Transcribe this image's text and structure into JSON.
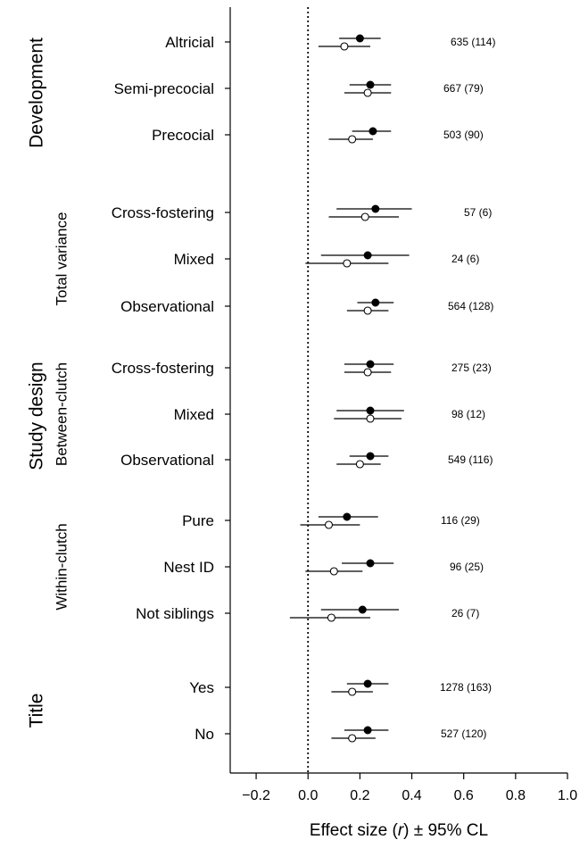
{
  "chart_data": {
    "type": "forest",
    "xlabel_prefix": "Effect size (",
    "xlabel_italic": "r",
    "xlabel_suffix": ") ± 95% CL",
    "xlim": [
      -0.3,
      1.0
    ],
    "xticks": [
      "−0.2",
      "0.0",
      "0.2",
      "0.4",
      "0.6",
      "0.8",
      "1.0"
    ],
    "xtick_values": [
      -0.2,
      0.0,
      0.2,
      0.4,
      0.6,
      0.8,
      1.0
    ],
    "reference_line": 0.0,
    "groups": [
      {
        "label": "Development"
      },
      {
        "label": "Study design"
      },
      {
        "label": "Title"
      }
    ],
    "subgroups": [
      {
        "label": "Total variance"
      },
      {
        "label": "Between-clutch"
      },
      {
        "label": "Within-clutch"
      }
    ],
    "series": [
      {
        "marker": "filled"
      },
      {
        "marker": "open"
      }
    ],
    "rows": [
      {
        "label": "Altricial",
        "n": "635 (114)",
        "filled": [
          0.2,
          0.12,
          0.28
        ],
        "open": [
          0.14,
          0.04,
          0.24
        ]
      },
      {
        "label": "Semi-precocial",
        "n": "667 (79)",
        "filled": [
          0.24,
          0.16,
          0.32
        ],
        "open": [
          0.23,
          0.14,
          0.32
        ]
      },
      {
        "label": "Precocial",
        "n": "503 (90)",
        "filled": [
          0.25,
          0.17,
          0.32
        ],
        "open": [
          0.17,
          0.08,
          0.25
        ]
      },
      {
        "label": "Cross-fostering",
        "n": "57 (6)",
        "filled": [
          0.26,
          0.11,
          0.4
        ],
        "open": [
          0.22,
          0.08,
          0.35
        ]
      },
      {
        "label": "Mixed",
        "n": "24 (6)",
        "filled": [
          0.23,
          0.05,
          0.39
        ],
        "open": [
          0.15,
          -0.01,
          0.31
        ]
      },
      {
        "label": "Observational",
        "n": "564 (128)",
        "filled": [
          0.26,
          0.19,
          0.33
        ],
        "open": [
          0.23,
          0.15,
          0.31
        ]
      },
      {
        "label": "Cross-fostering",
        "n": "275 (23)",
        "filled": [
          0.24,
          0.14,
          0.33
        ],
        "open": [
          0.23,
          0.14,
          0.32
        ]
      },
      {
        "label": "Mixed",
        "n": "98 (12)",
        "filled": [
          0.24,
          0.11,
          0.37
        ],
        "open": [
          0.24,
          0.1,
          0.36
        ]
      },
      {
        "label": "Observational",
        "n": "549 (116)",
        "filled": [
          0.24,
          0.16,
          0.31
        ],
        "open": [
          0.2,
          0.11,
          0.28
        ]
      },
      {
        "label": "Pure",
        "n": "116 (29)",
        "filled": [
          0.15,
          0.04,
          0.27
        ],
        "open": [
          0.08,
          -0.03,
          0.2
        ]
      },
      {
        "label": "Nest ID",
        "n": "96 (25)",
        "filled": [
          0.24,
          0.13,
          0.33
        ],
        "open": [
          0.1,
          -0.01,
          0.21
        ]
      },
      {
        "label": "Not siblings",
        "n": "26 (7)",
        "filled": [
          0.21,
          0.05,
          0.35
        ],
        "open": [
          0.09,
          -0.07,
          0.24
        ]
      },
      {
        "label": "Yes",
        "n": "1278 (163)",
        "filled": [
          0.23,
          0.15,
          0.31
        ],
        "open": [
          0.17,
          0.09,
          0.25
        ]
      },
      {
        "label": "No",
        "n": "527 (120)",
        "filled": [
          0.23,
          0.14,
          0.31
        ],
        "open": [
          0.17,
          0.09,
          0.26
        ]
      }
    ]
  }
}
